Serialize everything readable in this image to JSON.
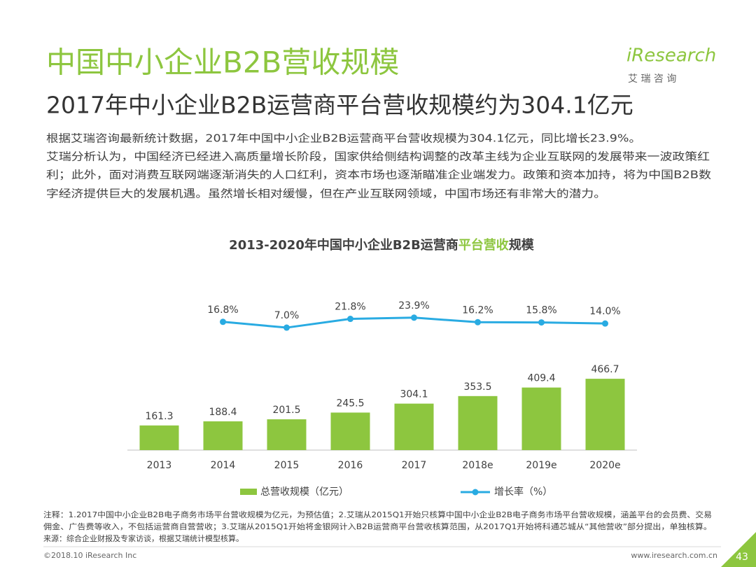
{
  "slide": {
    "title": "中国中小企业B2B营收规模",
    "subtitle": "2017年中小企业B2B运营商平台营收规模约为304.1亿元",
    "logo": "iResearch",
    "logo_cn": "艾 瑞 咨 询",
    "body": [
      "根据艾瑞咨询最新统计数据，2017年中国中小企业B2B运营商平台营收规模为304.1亿元，同比增长23.9%。",
      "艾瑞分析认为，中国经济已经进入高质量增长阶段，国家供给侧结构调整的改革主线为企业互联网的发展带来一波政策红",
      "利；此外，面对消费互联网端逐渐消失的人口红利，资本市场也逐渐瞄准企业端发力。政策和资本加持，将为中国B2B数",
      "字经济提供巨大的发展机遇。虽然增长相对缓慢，但在产业互联网领域，中国市场还有非常大的潜力。"
    ],
    "notes": [
      "注释：1.2017中国中小企业B2B电子商务市场平台营收规模为亿元，为预估值；2.艾瑞从2015Q1开始只核算中国中小企业B2B电子商务市场平台营收规模，涵盖平台的会员费、交易",
      "佣金、广告费等收入，不包括运营商自营营收；3.艾瑞从2015Q1开始将金银网计入B2B运营商平台营收核算范围，从2017Q1开始将科通芯城从“其他营收”部分提出，单独核算。",
      "来源：综合企业财报及专家访谈，根据艾瑞统计模型核算。"
    ],
    "copyright": "©2018.10 iResearch Inc",
    "website": "www.iresearch.com.cn",
    "page_number": "43"
  },
  "chart_data": {
    "type": "bar",
    "title_parts": [
      "2013-2020年中国中小企业B2B运营商",
      "平台营收",
      "规模"
    ],
    "title_highlight_color": "#8dc63f",
    "categories": [
      "2013",
      "2014",
      "2015",
      "2016",
      "2017",
      "2018e",
      "2019e",
      "2020e"
    ],
    "series": [
      {
        "name": "总营收规模（亿元）",
        "type": "bar",
        "color": "#8dc63f",
        "values": [
          161.3,
          188.4,
          201.5,
          245.5,
          304.1,
          353.5,
          409.4,
          466.7
        ]
      },
      {
        "name": "增长率（%）",
        "type": "line",
        "axis": "y2",
        "color": "#29abe2",
        "values": [
          null,
          16.8,
          7.0,
          21.8,
          23.9,
          16.2,
          15.8,
          14.0
        ],
        "value_labels": [
          null,
          "16.8%",
          "7.0%",
          "21.8%",
          "23.9%",
          "16.2%",
          "15.8%",
          "14.0%"
        ]
      }
    ],
    "ylim": [
      0,
      1200
    ],
    "y2lim": [
      -200,
      110
    ],
    "legend": "bottom"
  }
}
